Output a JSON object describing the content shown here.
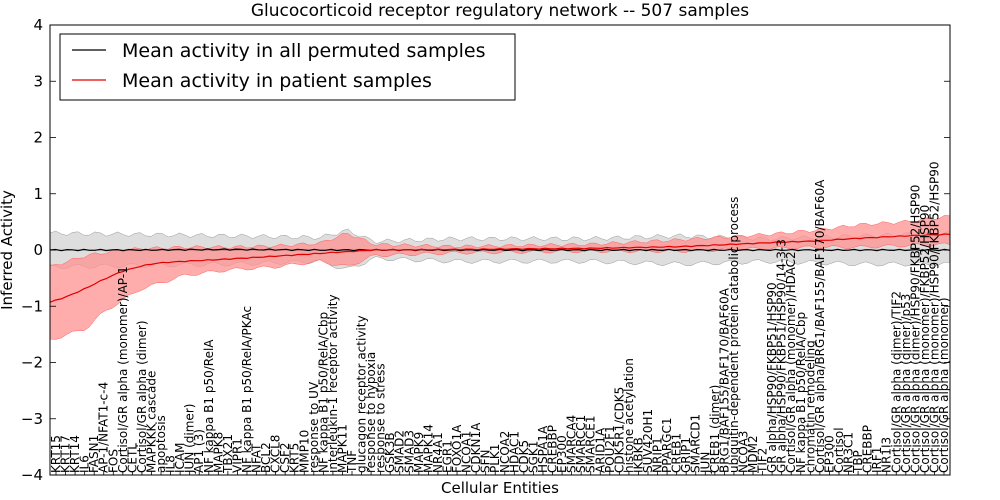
{
  "chart_data": {
    "type": "line",
    "title": "Glucocorticoid receptor regulatory network -- 507 samples",
    "xlabel": "Cellular Entities",
    "ylabel": "Inferred Activity",
    "ylim": [
      -4,
      4
    ],
    "yticks": [
      -4,
      -3,
      -2,
      -1,
      0,
      1,
      2,
      3,
      4
    ],
    "legend_position": "top-left",
    "colors": {
      "permuted_line": "#000000",
      "permuted_band": "#c8c8c8",
      "patient_line": "#e00000",
      "patient_band": "#ff9090"
    },
    "series": [
      {
        "name": "Mean activity in all permuted samples",
        "anchors": [
          [
            0,
            0.0
          ],
          [
            0.1,
            0.0
          ],
          [
            0.2,
            0.01
          ],
          [
            0.3,
            0.0
          ],
          [
            0.4,
            0.0
          ],
          [
            0.5,
            0.0
          ],
          [
            0.6,
            0.0
          ],
          [
            0.7,
            0.0
          ],
          [
            0.8,
            0.0
          ],
          [
            0.9,
            0.0
          ],
          [
            1.0,
            0.0
          ]
        ],
        "band_anchors": [
          [
            0,
            -0.3,
            0.3
          ],
          [
            0.2,
            -0.25,
            0.25
          ],
          [
            0.3,
            -0.2,
            0.22
          ],
          [
            0.33,
            -0.35,
            0.35
          ],
          [
            0.36,
            -0.15,
            0.15
          ],
          [
            0.45,
            -0.2,
            0.2
          ],
          [
            0.6,
            -0.2,
            0.2
          ],
          [
            0.7,
            -0.25,
            0.25
          ],
          [
            0.8,
            -0.2,
            0.2
          ],
          [
            0.9,
            -0.25,
            0.25
          ],
          [
            1.0,
            -0.25,
            0.3
          ]
        ]
      },
      {
        "name": "Mean activity in patient samples",
        "anchors": [
          [
            0,
            -0.93
          ],
          [
            0.02,
            -0.82
          ],
          [
            0.04,
            -0.68
          ],
          [
            0.06,
            -0.52
          ],
          [
            0.08,
            -0.38
          ],
          [
            0.1,
            -0.29
          ],
          [
            0.12,
            -0.23
          ],
          [
            0.15,
            -0.2
          ],
          [
            0.2,
            -0.16
          ],
          [
            0.25,
            -0.11
          ],
          [
            0.3,
            -0.06
          ],
          [
            0.33,
            -0.03
          ],
          [
            0.36,
            0.0
          ],
          [
            0.45,
            0.01
          ],
          [
            0.6,
            0.03
          ],
          [
            0.7,
            0.06
          ],
          [
            0.8,
            0.13
          ],
          [
            0.85,
            0.16
          ],
          [
            0.9,
            0.21
          ],
          [
            0.95,
            0.25
          ],
          [
            1.0,
            0.28
          ]
        ],
        "band_anchors": [
          [
            0,
            -1.6,
            -0.3
          ],
          [
            0.02,
            -1.5,
            -0.2
          ],
          [
            0.04,
            -1.4,
            -0.1
          ],
          [
            0.06,
            -1.1,
            -0.05
          ],
          [
            0.08,
            -0.9,
            0.0
          ],
          [
            0.1,
            -0.7,
            0.02
          ],
          [
            0.15,
            -0.45,
            0.05
          ],
          [
            0.2,
            -0.35,
            0.05
          ],
          [
            0.25,
            -0.3,
            0.07
          ],
          [
            0.3,
            -0.2,
            0.12
          ],
          [
            0.33,
            -0.3,
            0.3
          ],
          [
            0.36,
            -0.1,
            0.1
          ],
          [
            0.45,
            -0.05,
            0.06
          ],
          [
            0.6,
            -0.02,
            0.1
          ],
          [
            0.7,
            -0.02,
            0.18
          ],
          [
            0.8,
            0.03,
            0.28
          ],
          [
            0.85,
            0.05,
            0.35
          ],
          [
            0.9,
            0.05,
            0.45
          ],
          [
            0.95,
            0.08,
            0.5
          ],
          [
            1.0,
            0.1,
            0.6
          ]
        ]
      }
    ],
    "categories": [
      "KRT15",
      "KRT17",
      "KRT14",
      "IL6",
      "FASN1",
      "AP-1/NFAT1-c-4",
      "FOS",
      "Cortisol/GR alpha (monomer)/AP-1",
      "CETL",
      "Cortisol/GR alpha (dimer)",
      "MAPKKK cascade",
      "apoptosis",
      "IL8",
      "ICAM",
      "JUN (dimer)",
      "AP1 (3)",
      "NF kappa B1 p50/RelA",
      "MAPK8",
      "TBX21",
      "VIPR1",
      "NF kappa B1 p50/RelA/PKAc",
      "NFAT",
      "BCL2",
      "CXCL8",
      "CSF2",
      "KRT5",
      "MMP10",
      "response to UV",
      "NF kappa B1 p50/RelA/Cbp",
      "interleukin-1 receptor activity",
      "MAPK11",
      "TNF",
      "glucagon receptor activity",
      "response to hypoxia",
      "response to stress",
      "GSK3B",
      "SMAD2",
      "SMAD3",
      "MAPK9",
      "MAPK14",
      "NR4A1",
      "EGR1",
      "FOXO1A",
      "NCOA1",
      "CDKN1A",
      "SFN",
      "PLK1",
      "NCOA2",
      "HDAC1",
      "CDK5",
      "SGK1",
      "HSPA1A",
      "CREBBP",
      "EP300",
      "SMARCA4",
      "SMARCC1",
      "SMARCE1",
      "ARID1A",
      "POU2F1",
      "CDK5R1/CDK5",
      "histone acetylation",
      "IKBKB",
      "SUV420H1",
      "NRIP1",
      "PPARGC1",
      "CREB1",
      "GRIP1",
      "SMARCD1",
      "JUN",
      "CREB1 (dimer)",
      "BRG1/BAF155/BAF170/BAF60A",
      "ubiquitin-dependent protein catabolic process",
      "NCOA3",
      "MDM2",
      "TIF2",
      "GR alpha/HSP90/FKBP51/HSP90",
      "GR alpha/HSP90/FKBP51/HSP90/14-3-3",
      "Cortisol/GR alpha (monomer)/HDAC2",
      "NF kappa B1 p50/RelA/Cbp",
      "chromatin remodeling",
      "Cortisol/GR alpha/BRG1/BAF155/BAF170/BAF60A",
      "EP300",
      "Cortisol",
      "NR3C1",
      "TBP",
      "CREBBP",
      "IRF1",
      "NR1I3",
      "Cortisol/GR alpha (dimer)/TIF2",
      "Cortisol/GR alpha (dimer)/p53",
      "Cortisol/GR alpha (dimer)/HSP90/FKBP52/HSP90",
      "Cortisol/GR alpha (monomer)/FKBP52/HSP90",
      "Cortisol/GR alpha (monomer)/HSP90/FKBP52/HSP90",
      "Cortisol/GR alpha (monomer)"
    ]
  }
}
